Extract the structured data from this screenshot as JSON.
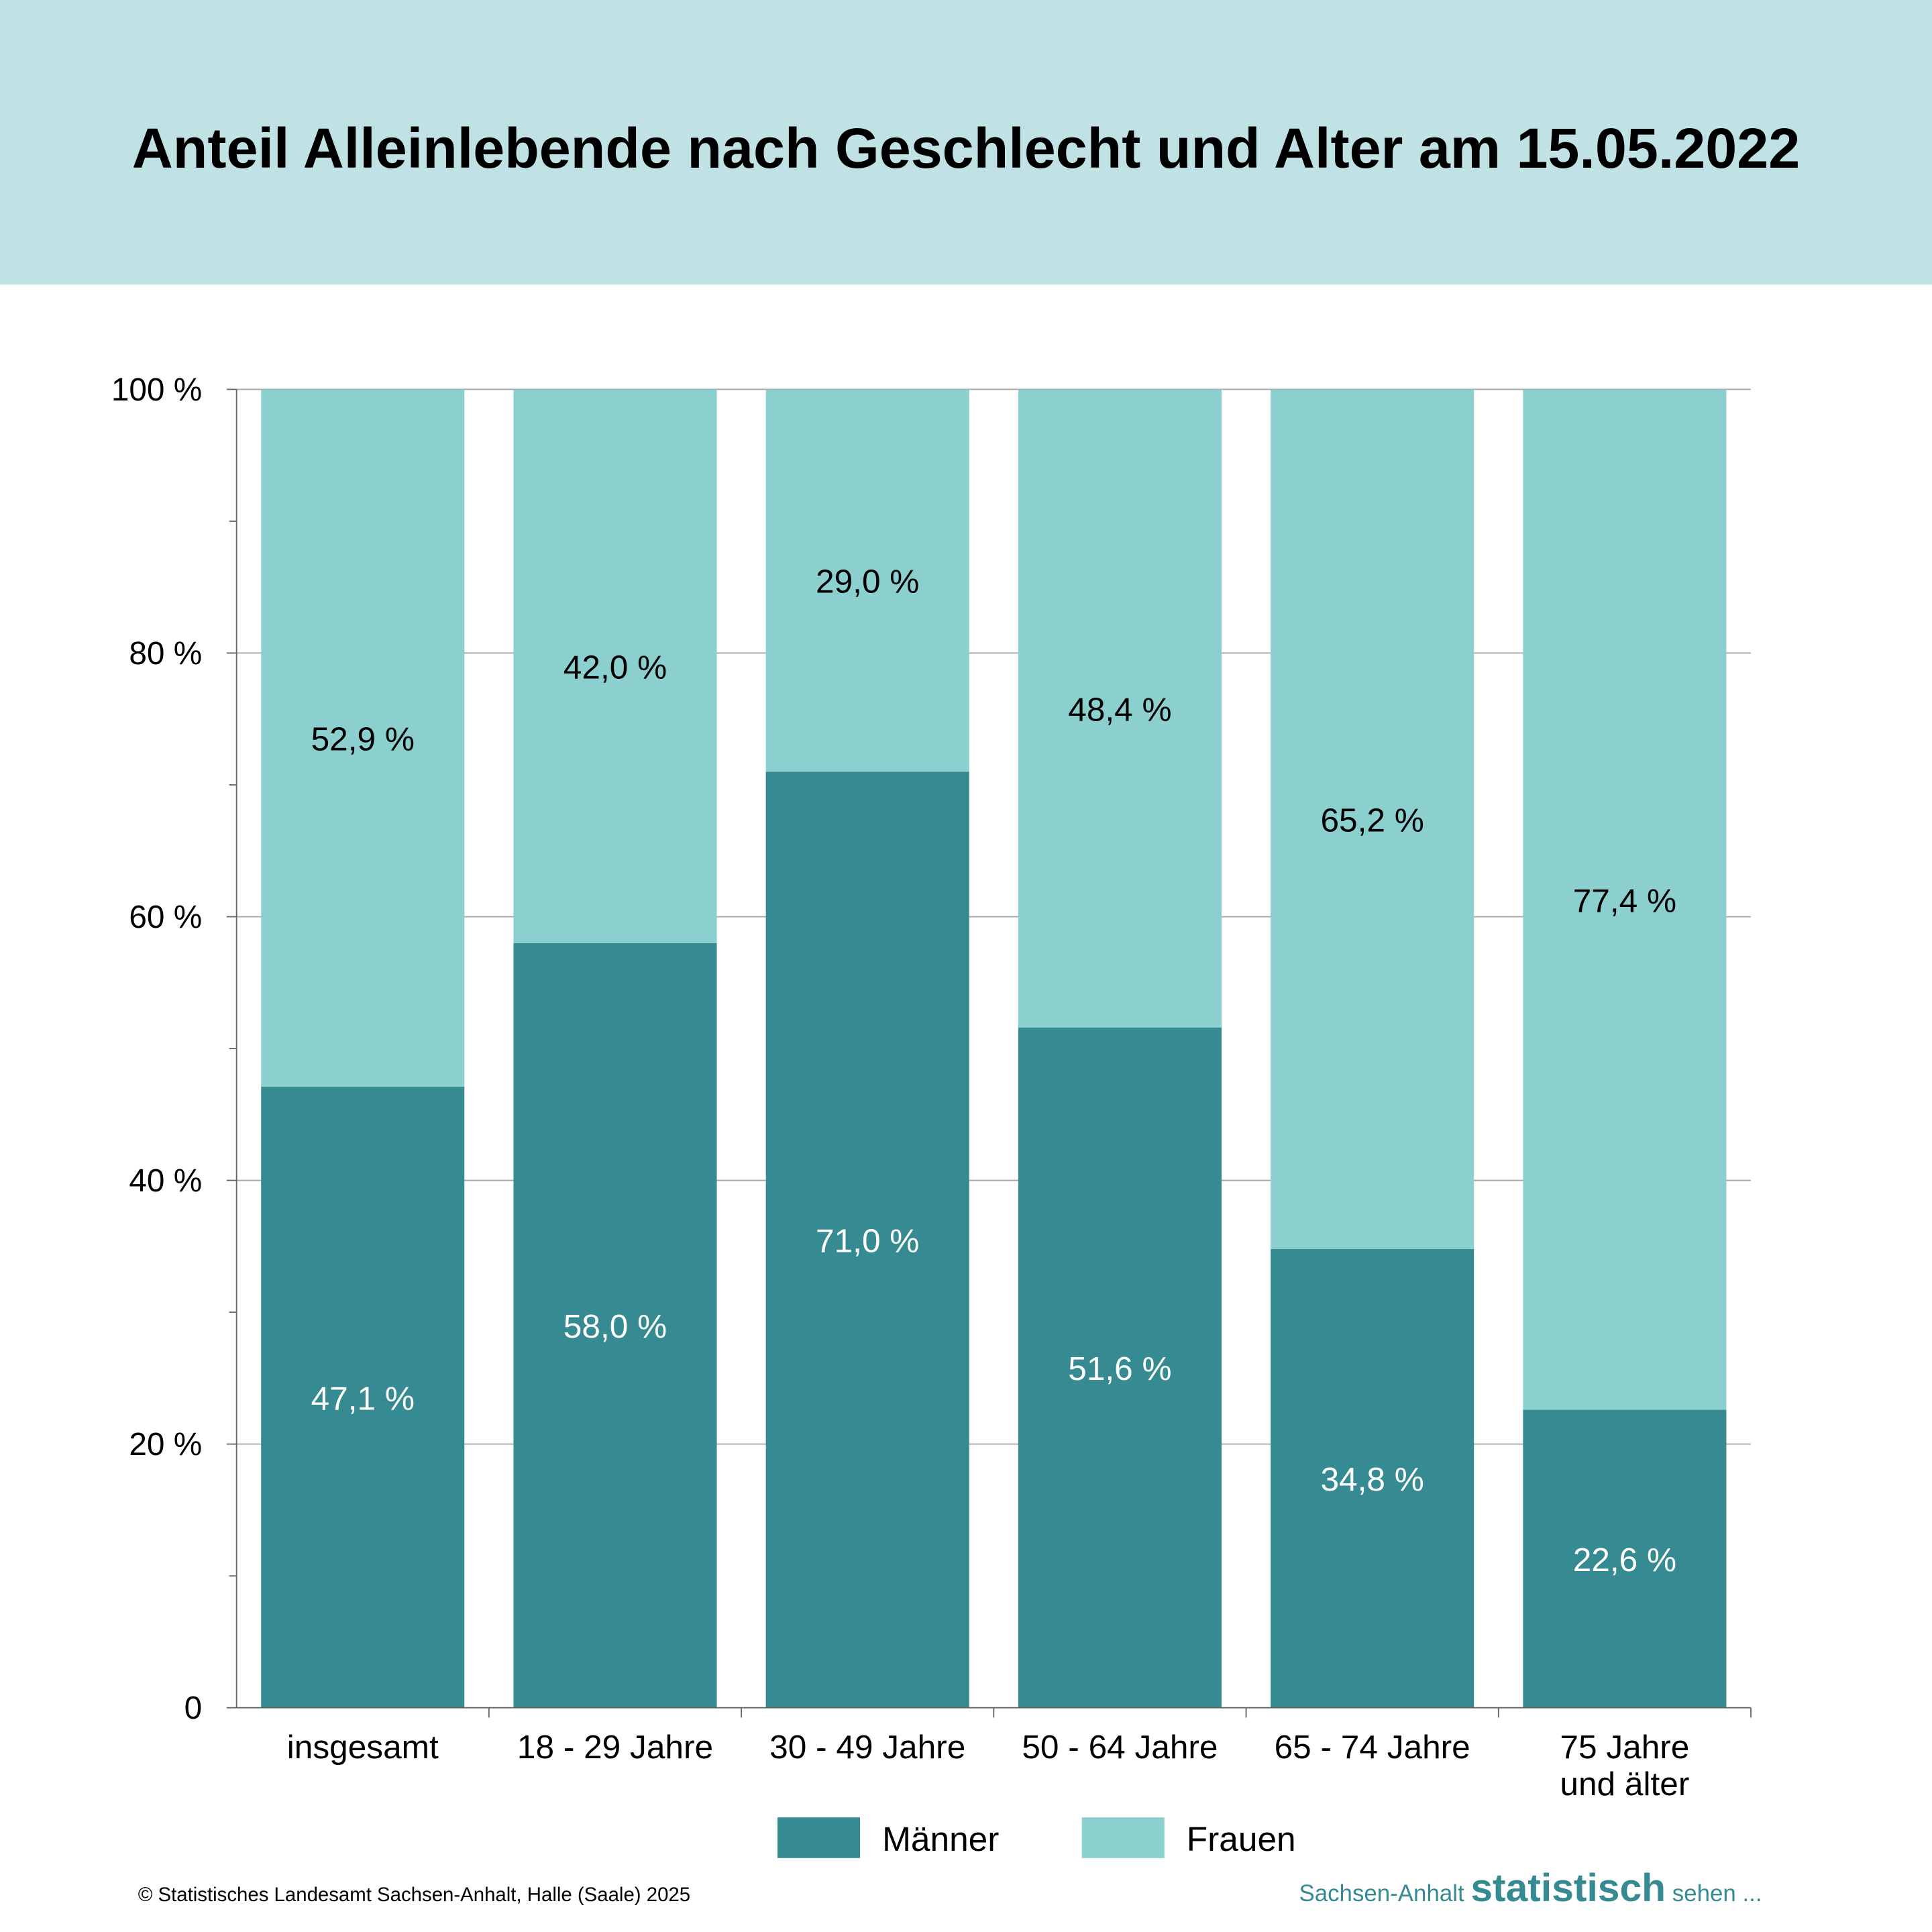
{
  "chart_data": {
    "type": "bar",
    "stacked": true,
    "title": "Anteil Alleinlebende nach Geschlecht und Alter am 15.05.2022",
    "categories": [
      [
        "insgesamt"
      ],
      [
        "18 - 29 Jahre"
      ],
      [
        "30 - 49 Jahre"
      ],
      [
        "50 - 64 Jahre"
      ],
      [
        "65 - 74 Jahre"
      ],
      [
        "75 Jahre",
        "und älter"
      ]
    ],
    "series": [
      {
        "name": "Männer",
        "color": "#368a91",
        "label_color": "#ffffff",
        "values": [
          47.1,
          58.0,
          71.0,
          51.6,
          34.8,
          22.6
        ],
        "labels": [
          "47,1 %",
          "58,0 %",
          "71,0 %",
          "51,6 %",
          "34,8 %",
          "22,6 %"
        ]
      },
      {
        "name": "Frauen",
        "color": "#8bcfcf",
        "label_color": "#000000",
        "values": [
          52.9,
          42.0,
          29.0,
          48.4,
          65.2,
          77.4
        ],
        "labels": [
          "52,9 %",
          "42,0 %",
          "29,0 %",
          "48,4 %",
          "65,2 %",
          "77,4 %"
        ]
      }
    ],
    "ylim": [
      0,
      100
    ],
    "yticks": [
      0,
      20,
      40,
      60,
      80,
      100
    ],
    "ytick_labels": [
      "0",
      "20 %",
      "40 %",
      "60 %",
      "80 %",
      "100 %"
    ],
    "grid": true,
    "legend": "bottom-center",
    "xlabel": "",
    "ylabel": ""
  },
  "header_bg": "#c0e2e4",
  "footer": {
    "copyright": "© Statistisches Landesamt Sachsen-Anhalt, Halle (Saale) 2025",
    "brand_pre": "Sachsen-Anhalt ",
    "brand_main": "statistisch",
    "brand_post": " sehen ..."
  }
}
